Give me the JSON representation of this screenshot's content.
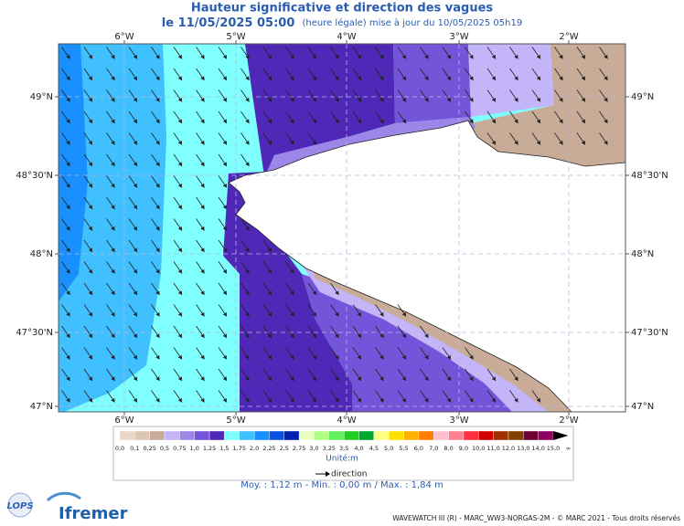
{
  "header": {
    "title": "Hauteur significative et direction des vagues",
    "date": "le 11/05/2025 05:00",
    "note": "(heure légale) mise à jour du 10/05/2025 05h19"
  },
  "map": {
    "lon_labels": [
      "6°W",
      "5°W",
      "4°W",
      "3°W",
      "2°W"
    ],
    "lat_labels": [
      "49°N",
      "48°30'N",
      "48°N",
      "47°30'N",
      "47°N"
    ]
  },
  "legend": {
    "labels": [
      "0,0",
      "0,1",
      "0,25",
      "0,5",
      "0,75",
      "1,0",
      "1,25",
      "1,5",
      "1,75",
      "2,0",
      "2,25",
      "2,5",
      "2,75",
      "3,0",
      "3,25",
      "3,5",
      "4,0",
      "4,5",
      "5,0",
      "5,5",
      "6,0",
      "7,0",
      "8,0",
      "9,0",
      "10,0",
      "11,0",
      "12,0",
      "13,0",
      "14,0",
      "15,0",
      "∞"
    ],
    "colors": [
      "#e8d8c8",
      "#dcc6b2",
      "#c8ac98",
      "#c4b4f8",
      "#9c86e8",
      "#7454d8",
      "#5028b8",
      "#80ffff",
      "#40c0ff",
      "#1890ff",
      "#0850e0",
      "#0020b0",
      "#e8ffc0",
      "#b0ff80",
      "#60f060",
      "#20d020",
      "#00a830",
      "#ffff80",
      "#ffe000",
      "#ffb000",
      "#ff8000",
      "#ffc0d0",
      "#ff8090",
      "#ff3040",
      "#d00000",
      "#a03000",
      "#804000",
      "#700030",
      "#900060",
      "#000000"
    ],
    "unit": "Unité:m",
    "direction": "direction"
  },
  "stats": "Moy. : 1,12 m   -   Min. : 0,00 m / Max. : 1,84 m",
  "footer": "WAVEWATCH III (R) - MARC_WW3-NORGAS-2M - © MARC 2021 - Tous droits réservés",
  "logos": [
    "LOPS",
    "Ifremer"
  ]
}
